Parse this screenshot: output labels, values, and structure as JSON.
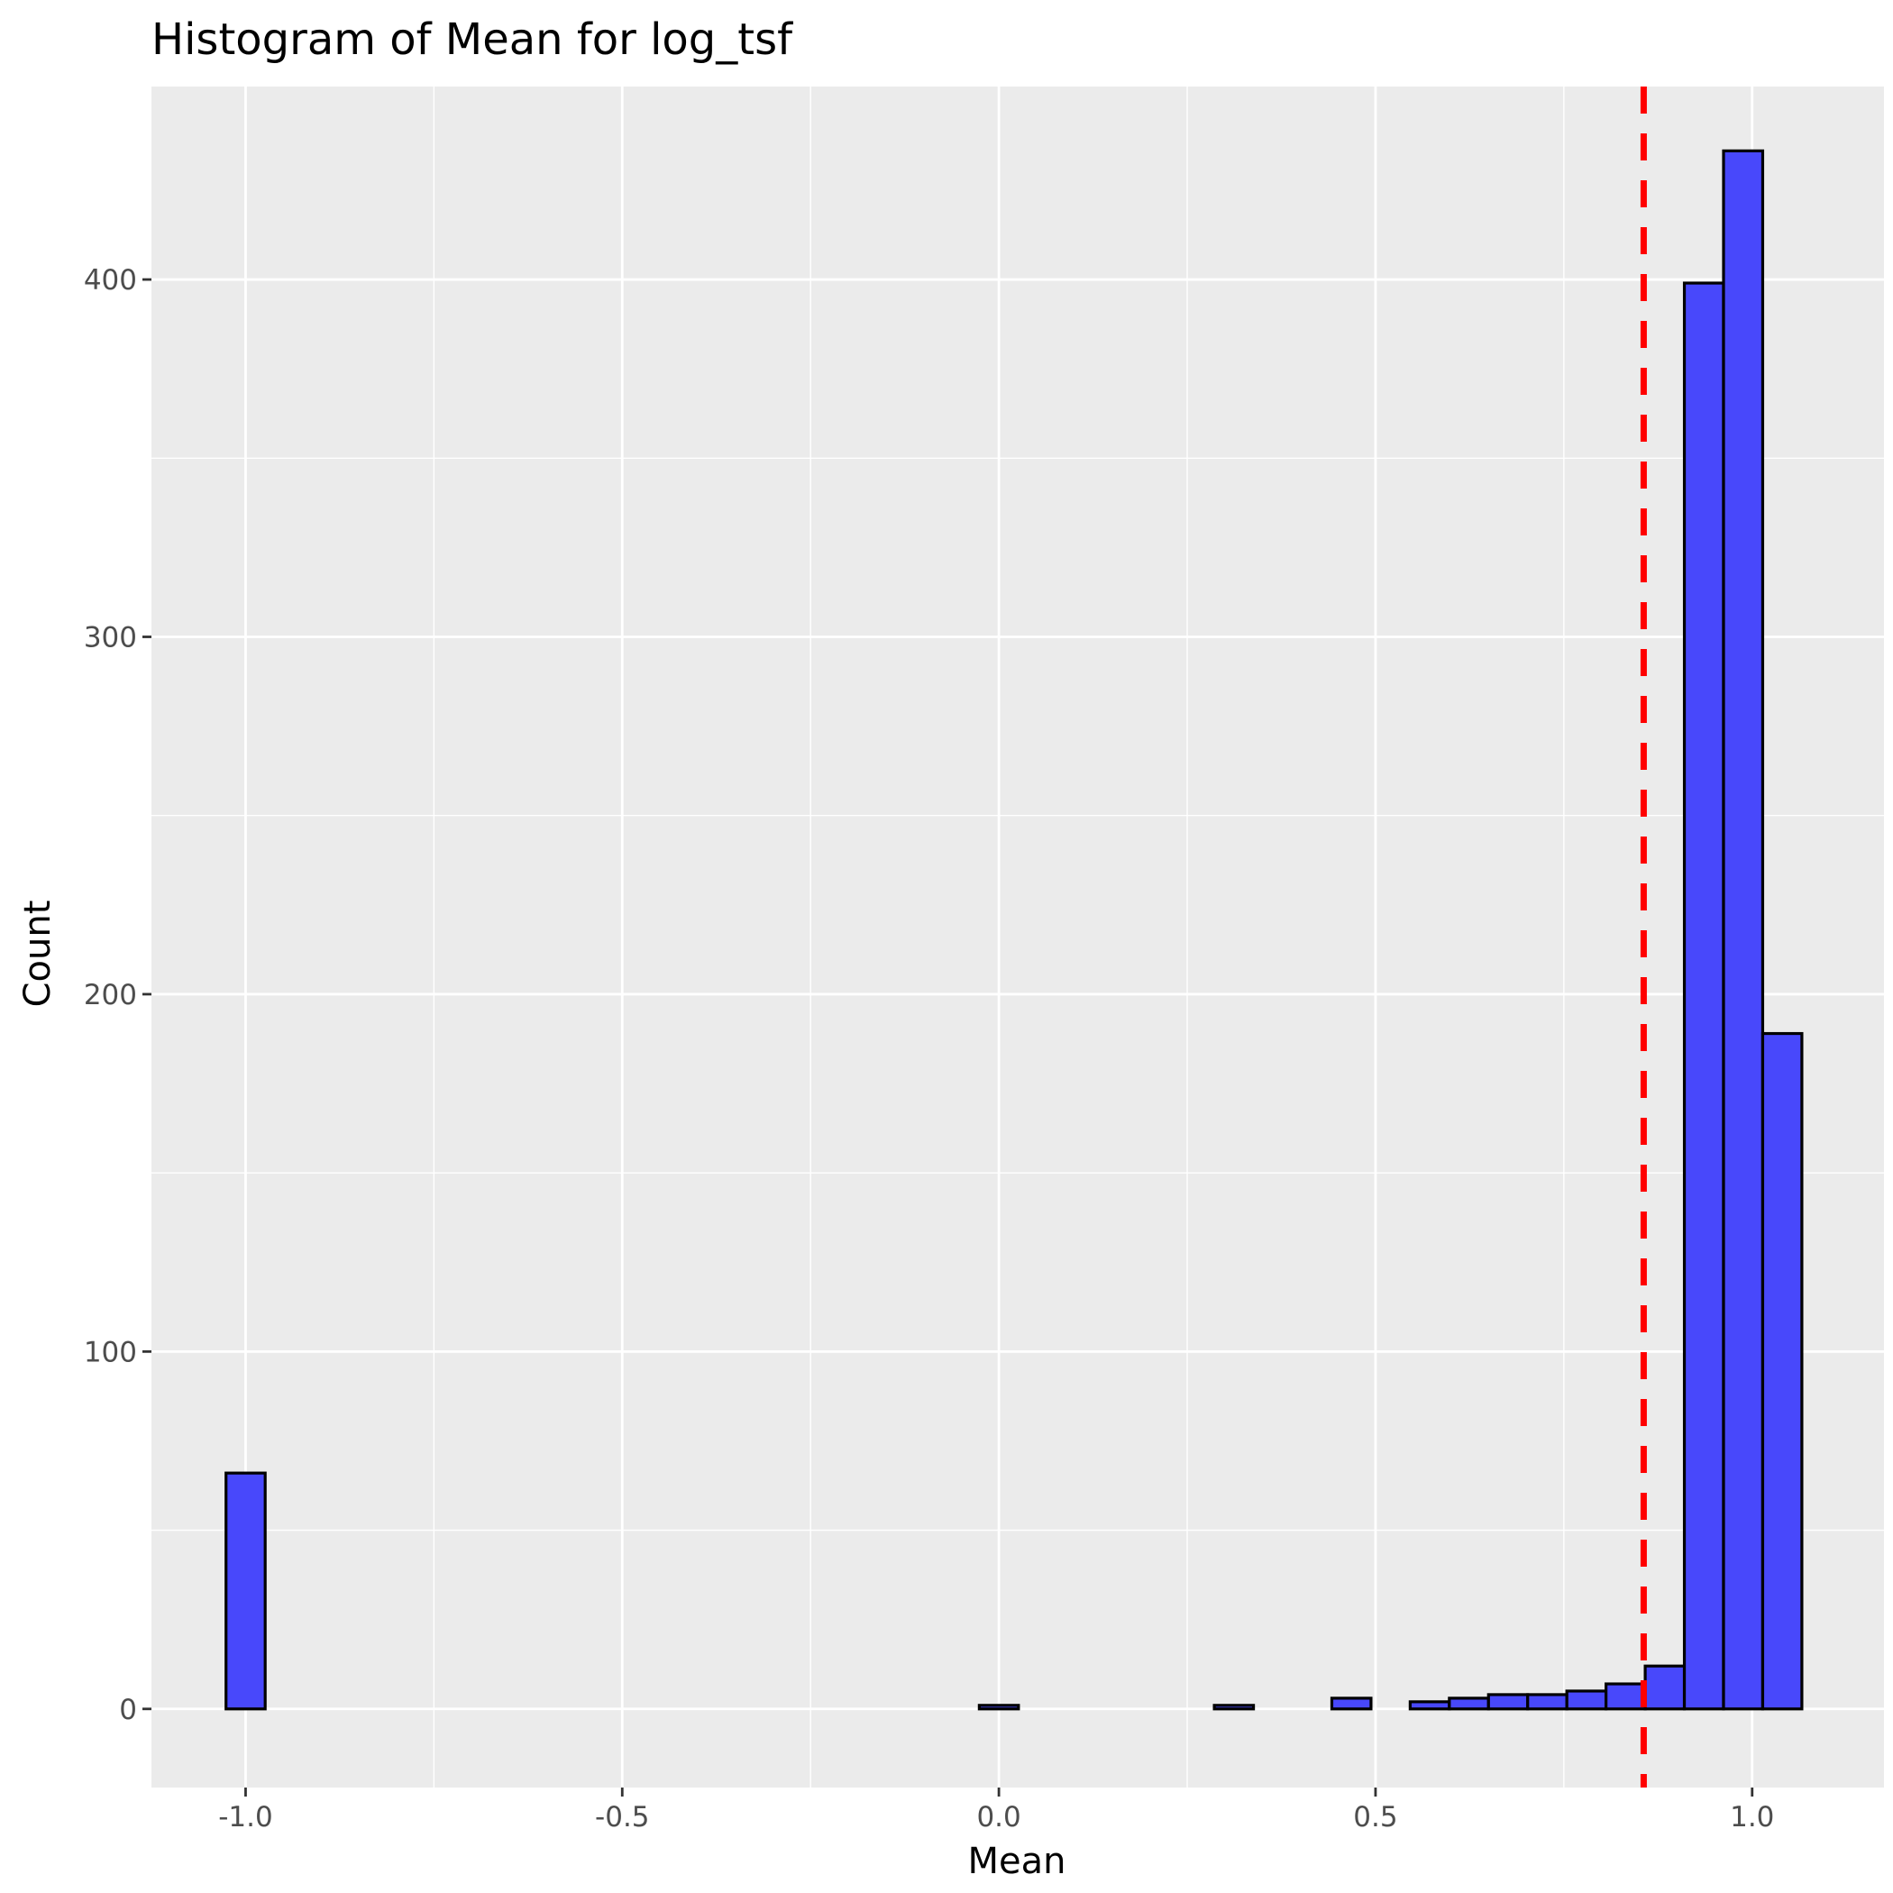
{
  "chart_data": {
    "type": "bar",
    "subtype": "histogram",
    "title": "Histogram of Mean for log_tsf",
    "xlabel": "Mean",
    "ylabel": "Count",
    "xlim": [
      -1.125,
      1.175
    ],
    "ylim": [
      -22,
      454
    ],
    "x_ticks": [
      -1.0,
      -0.5,
      0.0,
      0.5,
      1.0
    ],
    "x_tick_labels": [
      "-1.0",
      "-0.5",
      "0.0",
      "0.5",
      "1.0"
    ],
    "y_ticks": [
      0,
      100,
      200,
      300,
      400
    ],
    "y_tick_labels": [
      "0",
      "100",
      "200",
      "300",
      "400"
    ],
    "bin_width": 0.052,
    "bin_centers": [
      -1.0,
      -0.948,
      -0.896,
      -0.844,
      -0.792,
      -0.74,
      -0.688,
      -0.636,
      -0.584,
      -0.532,
      -0.48,
      -0.428,
      -0.376,
      -0.324,
      -0.272,
      -0.22,
      -0.168,
      -0.116,
      -0.064,
      -0.012,
      0.0,
      0.052,
      0.104,
      0.156,
      0.208,
      0.26,
      0.312,
      0.364,
      0.416,
      0.468,
      0.52,
      0.572,
      0.624,
      0.676,
      0.728,
      0.78,
      0.832,
      0.884,
      0.936,
      0.988,
      1.04
    ],
    "counts": [
      66,
      0,
      0,
      0,
      0,
      0,
      0,
      0,
      0,
      0,
      0,
      0,
      0,
      0,
      0,
      0,
      0,
      0,
      0,
      0,
      1,
      0,
      0,
      0,
      0,
      0,
      1,
      0,
      0,
      3,
      0,
      2,
      3,
      4,
      4,
      5,
      7,
      12,
      399,
      436,
      189
    ],
    "reference_line": {
      "x": 0.856,
      "style": "dashed",
      "color": "#ff0000"
    },
    "bar_fill": "#4848fb",
    "bar_outline": "#000000",
    "panel_background": "#ebebeb",
    "grid": true,
    "legend": "none"
  }
}
